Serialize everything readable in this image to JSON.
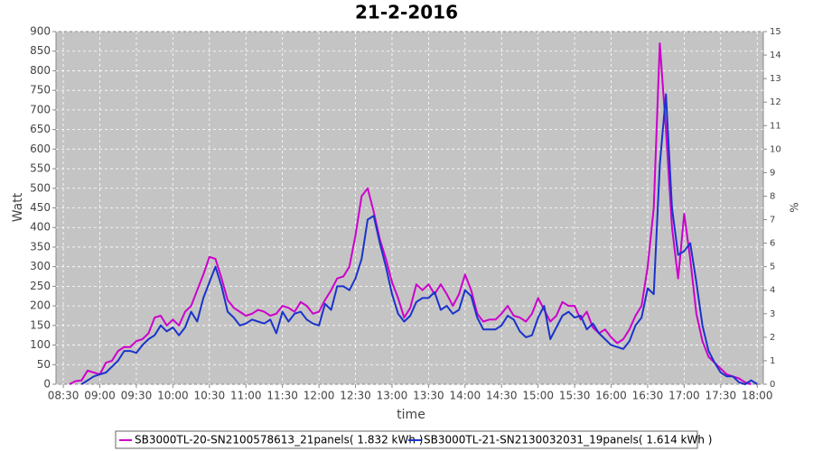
{
  "chart_data": {
    "type": "line",
    "title": "21-2-2016",
    "x_label": "time",
    "y_label": "Watt",
    "y2_label": "%",
    "x": [
      "08:35",
      "08:40",
      "08:45",
      "08:50",
      "08:55",
      "09:00",
      "09:05",
      "09:10",
      "09:15",
      "09:20",
      "09:25",
      "09:30",
      "09:35",
      "09:40",
      "09:45",
      "09:50",
      "09:55",
      "10:00",
      "10:05",
      "10:10",
      "10:15",
      "10:20",
      "10:25",
      "10:30",
      "10:35",
      "10:40",
      "10:45",
      "10:50",
      "10:55",
      "11:00",
      "11:05",
      "11:10",
      "11:15",
      "11:20",
      "11:25",
      "11:30",
      "11:35",
      "11:40",
      "11:45",
      "11:50",
      "11:55",
      "12:00",
      "12:05",
      "12:10",
      "12:15",
      "12:20",
      "12:25",
      "12:30",
      "12:35",
      "12:40",
      "12:45",
      "12:50",
      "12:55",
      "13:00",
      "13:05",
      "13:10",
      "13:15",
      "13:20",
      "13:25",
      "13:30",
      "13:35",
      "13:40",
      "13:45",
      "13:50",
      "13:55",
      "14:00",
      "14:05",
      "14:10",
      "14:15",
      "14:20",
      "14:25",
      "14:30",
      "14:35",
      "14:40",
      "14:45",
      "14:50",
      "14:55",
      "15:00",
      "15:05",
      "15:10",
      "15:15",
      "15:20",
      "15:25",
      "15:30",
      "15:35",
      "15:40",
      "15:45",
      "15:50",
      "15:55",
      "16:00",
      "16:05",
      "16:10",
      "16:15",
      "16:20",
      "16:25",
      "16:30",
      "16:35",
      "16:40",
      "16:45",
      "16:50",
      "16:55",
      "17:00",
      "17:05",
      "17:10",
      "17:15",
      "17:20",
      "17:25",
      "17:30",
      "17:35",
      "17:40",
      "17:45",
      "17:50",
      "17:55",
      "18:00"
    ],
    "series": [
      {
        "name": "SB3000TL-20-SN2100578613_21panels( 1.832 kWh )",
        "color": "#cc00cc",
        "values": [
          0,
          8,
          10,
          35,
          30,
          25,
          55,
          60,
          85,
          95,
          95,
          110,
          115,
          130,
          170,
          175,
          150,
          165,
          150,
          185,
          200,
          240,
          280,
          325,
          320,
          270,
          215,
          195,
          185,
          175,
          180,
          190,
          185,
          175,
          180,
          200,
          195,
          185,
          210,
          200,
          180,
          185,
          215,
          240,
          270,
          275,
          300,
          380,
          480,
          500,
          440,
          370,
          320,
          260,
          220,
          170,
          195,
          255,
          240,
          255,
          230,
          255,
          230,
          200,
          230,
          280,
          240,
          180,
          160,
          165,
          165,
          180,
          200,
          175,
          170,
          160,
          180,
          220,
          190,
          160,
          175,
          210,
          200,
          200,
          165,
          185,
          145,
          130,
          140,
          120,
          105,
          115,
          140,
          175,
          200,
          300,
          450,
          870,
          650,
          400,
          270,
          435,
          320,
          180,
          110,
          70,
          55,
          40,
          25,
          20,
          15,
          5,
          0,
          null
        ]
      },
      {
        "name": "SB3000TL-21-SN2130032031_19panels( 1.614 kWh )",
        "color": "#1a33cc",
        "values": [
          null,
          null,
          0,
          10,
          20,
          25,
          30,
          45,
          60,
          85,
          85,
          80,
          100,
          115,
          125,
          150,
          135,
          145,
          125,
          145,
          185,
          160,
          220,
          260,
          300,
          250,
          185,
          170,
          150,
          155,
          165,
          160,
          155,
          165,
          130,
          185,
          160,
          180,
          185,
          165,
          155,
          150,
          205,
          190,
          250,
          250,
          240,
          270,
          320,
          420,
          430,
          360,
          300,
          230,
          180,
          160,
          175,
          210,
          220,
          220,
          235,
          190,
          200,
          180,
          190,
          240,
          225,
          170,
          140,
          140,
          140,
          150,
          175,
          165,
          135,
          120,
          125,
          170,
          200,
          115,
          145,
          175,
          185,
          170,
          175,
          140,
          155,
          130,
          115,
          100,
          95,
          90,
          110,
          150,
          170,
          245,
          230,
          560,
          740,
          450,
          330,
          340,
          360,
          260,
          150,
          85,
          55,
          30,
          20,
          20,
          5,
          0,
          10,
          0
        ]
      }
    ],
    "xlim": [
      "08:24",
      "18:05"
    ],
    "xticks": [
      "08:30",
      "09:00",
      "09:30",
      "10:00",
      "10:30",
      "11:00",
      "11:30",
      "12:00",
      "12:30",
      "13:00",
      "13:30",
      "14:00",
      "14:30",
      "15:00",
      "15:30",
      "16:00",
      "16:30",
      "17:00",
      "17:30",
      "18:00"
    ],
    "ylim": [
      0,
      900
    ],
    "yticks": [
      0,
      50,
      100,
      150,
      200,
      250,
      300,
      350,
      400,
      450,
      500,
      550,
      600,
      650,
      700,
      750,
      800,
      850,
      900
    ],
    "y2lim": [
      0,
      15
    ],
    "y2ticks": [
      0,
      1,
      2,
      3,
      4,
      5,
      6,
      7,
      8,
      9,
      10,
      11,
      12,
      13,
      14,
      15
    ],
    "grid": true,
    "legend": "bottom"
  }
}
